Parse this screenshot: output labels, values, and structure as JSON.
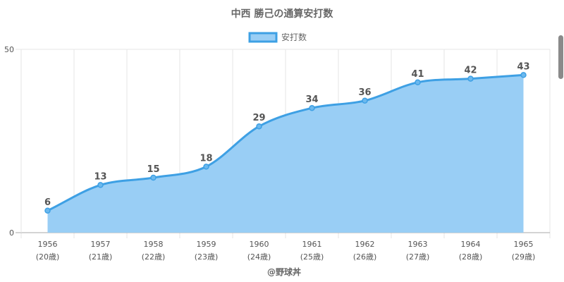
{
  "chart_data": {
    "type": "area",
    "title": "中西 勝己の通算安打数",
    "credit": "@野球丼",
    "x": [
      "1956",
      "1957",
      "1958",
      "1959",
      "1960",
      "1961",
      "1962",
      "1963",
      "1964",
      "1965"
    ],
    "x_sublabels": [
      "(20歳)",
      "(21歳)",
      "(22歳)",
      "(23歳)",
      "(24歳)",
      "(25歳)",
      "(26歳)",
      "(27歳)",
      "(28歳)",
      "(29歳)"
    ],
    "series": [
      {
        "name": "安打数",
        "values": [
          6,
          13,
          15,
          18,
          29,
          34,
          36,
          41,
          42,
          43
        ]
      }
    ],
    "ylim": [
      0,
      50
    ],
    "yticks": [
      "0",
      "50"
    ],
    "grid": true,
    "legend": "top-center",
    "colors": {
      "line": "#3ea0e4",
      "fill": "#99cef5",
      "grid": "#e6e6e6",
      "axis": "#aaaaaa"
    }
  }
}
